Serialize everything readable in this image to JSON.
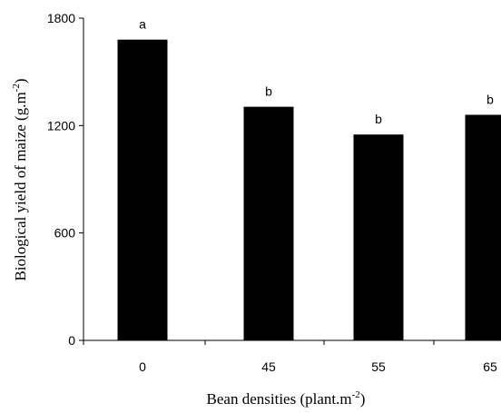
{
  "chart_data": {
    "type": "bar",
    "categories": [
      "0",
      "45",
      "55",
      "65"
    ],
    "values": [
      1680,
      1305,
      1150,
      1260
    ],
    "data_labels": [
      "a",
      "b",
      "b",
      "b"
    ],
    "ylim": [
      0,
      1800
    ],
    "yticks": [
      "0",
      "600",
      "1200",
      "1800"
    ],
    "xlabel_main": "Bean densities (plant.m",
    "xlabel_sup": "-2",
    "xlabel_end": ")",
    "ylabel_main": "Biological yield of maize (g.m",
    "ylabel_sup": "-2",
    "ylabel_end": ")",
    "bar_color": "#000000",
    "grid": false,
    "legend": "none"
  }
}
